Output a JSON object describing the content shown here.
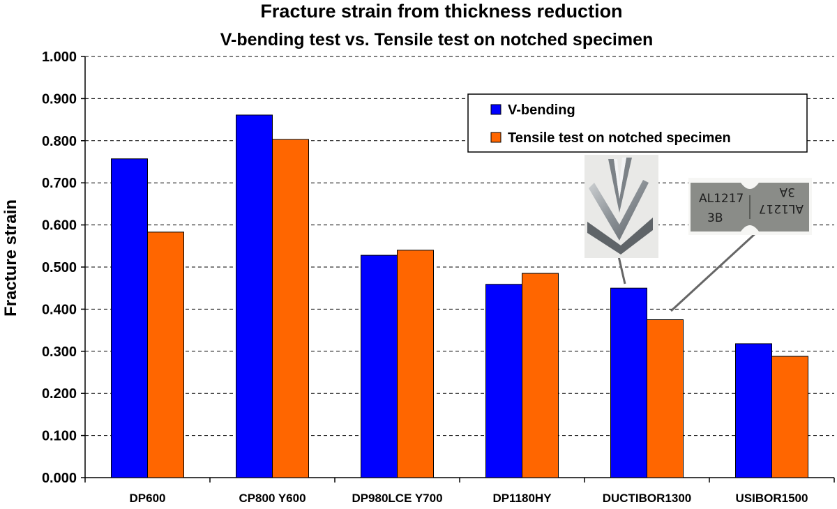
{
  "chart_data": {
    "type": "bar",
    "title": "Fracture strain from thickness reduction",
    "subtitle": "V-bending test vs. Tensile test on notched specimen",
    "xlabel": "",
    "ylabel": "Fracture strain",
    "ylim": [
      0,
      1.0
    ],
    "yticks": [
      "0.000",
      "0.100",
      "0.200",
      "0.300",
      "0.400",
      "0.500",
      "0.600",
      "0.700",
      "0.800",
      "0.900",
      "1.000"
    ],
    "grid": true,
    "legend_position": "top-right",
    "categories": [
      "DP600",
      "CP800 Y600",
      "DP980LCE Y700",
      "DP1180HY",
      "DUCTIBOR1300",
      "USIBOR1500"
    ],
    "series": [
      {
        "name": "V-bending",
        "color": "#0000FF",
        "values": [
          0.757,
          0.861,
          0.528,
          0.459,
          0.45,
          0.318
        ]
      },
      {
        "name": "Tensile test on notched specimen",
        "color": "#FF6600",
        "values": [
          0.583,
          0.803,
          0.54,
          0.485,
          0.375,
          0.288
        ]
      }
    ],
    "annotations": [
      {
        "label": "v-bend-specimen-photo",
        "kind": "photo",
        "points_to": {
          "category": "DUCTIBOR1300",
          "series": "V-bending"
        }
      },
      {
        "label": "tensile-specimen-photo",
        "kind": "photo",
        "points_to": {
          "category": "DUCTIBOR1300",
          "series": "Tensile test on notched specimen"
        }
      }
    ]
  },
  "photos": {
    "vbend": {
      "icon": "v-bend-specimen-photo"
    },
    "tensile": {
      "icon": "notched-tensile-specimen-photo",
      "markings": [
        "AL1217",
        "3B",
        "AL1217",
        "3A"
      ]
    }
  }
}
